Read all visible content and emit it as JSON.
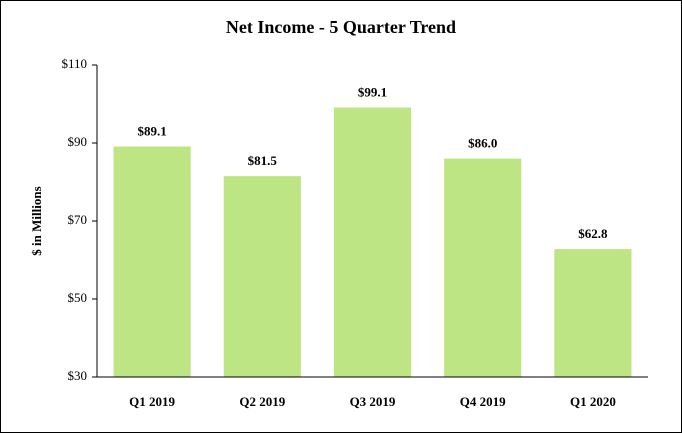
{
  "chart_data": {
    "type": "bar",
    "title": "Net Income - 5 Quarter Trend",
    "y_label": "$ in Millions",
    "categories": [
      "Q1 2019",
      "Q2 2019",
      "Q3 2019",
      "Q4 2019",
      "Q1 2020"
    ],
    "values": [
      89.1,
      81.5,
      99.1,
      86.0,
      62.8
    ],
    "value_labels": [
      "$89.1",
      "$81.5",
      "$99.1",
      "$86.0",
      "$62.8"
    ],
    "color": "#bde584",
    "ylim": [
      30,
      110
    ],
    "yticks": [
      {
        "value": 30,
        "label": "$30"
      },
      {
        "value": 50,
        "label": "$50"
      },
      {
        "value": 70,
        "label": "$70"
      },
      {
        "value": 90,
        "label": "$90"
      },
      {
        "value": 110,
        "label": "$110"
      }
    ],
    "grid": false
  }
}
